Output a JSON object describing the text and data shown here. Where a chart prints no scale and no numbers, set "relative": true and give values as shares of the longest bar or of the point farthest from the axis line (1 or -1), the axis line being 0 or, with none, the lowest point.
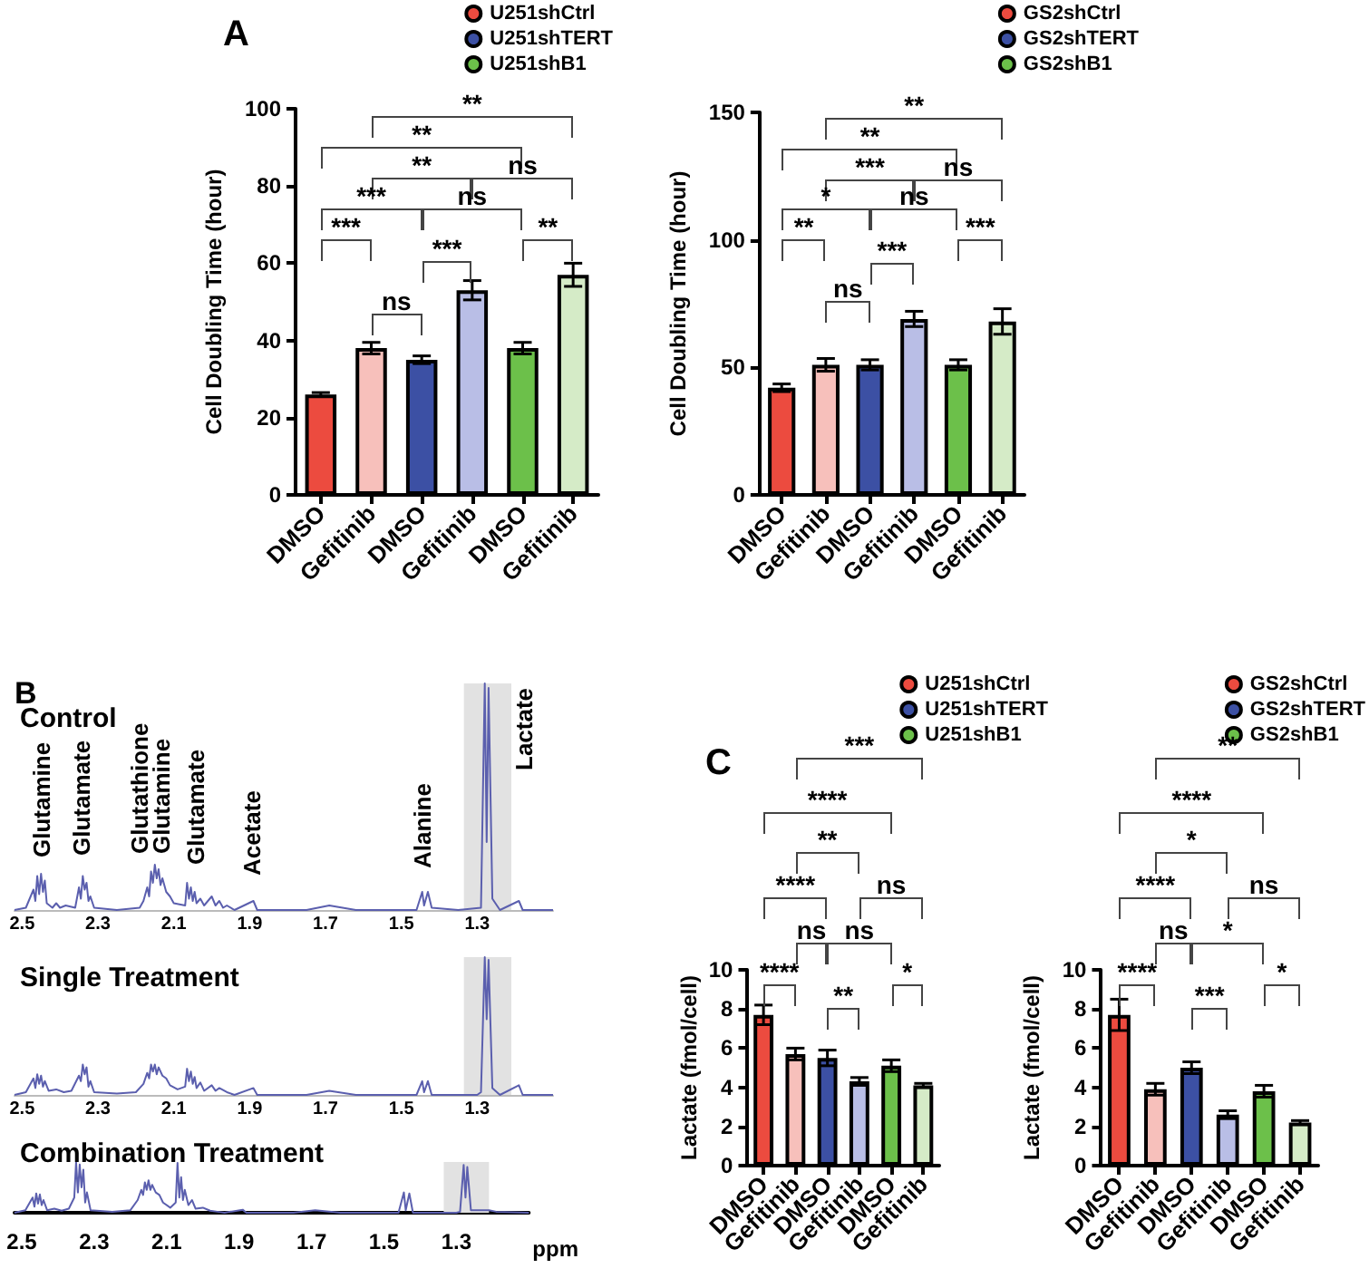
{
  "chart_data": [
    {
      "type": "bar",
      "title": "A",
      "ylabel": "Cell Doubling Time (hour)",
      "categories": [
        "DMSO",
        "Gefitinib",
        "DMSO",
        "Gefitinib",
        "DMSO",
        "Gefitinib"
      ],
      "ylim": [
        0,
        100
      ],
      "yticks": [
        0,
        20,
        40,
        60,
        80,
        100
      ],
      "legend": "top right",
      "annotations": [
        "**",
        "**",
        "**",
        "ns",
        "***",
        "ns",
        "***",
        "***",
        "**",
        "ns"
      ],
      "series": [
        {
          "name": "U251shCtrl",
          "color": "#ec4b3f",
          "colors": [
            "#ec4b3f",
            "#f7c0bb",
            null,
            null,
            null,
            null
          ],
          "values": [
            26,
            38,
            null,
            null,
            null,
            null
          ],
          "errors": [
            0.5,
            1.5,
            null,
            null,
            null,
            null
          ]
        },
        {
          "name": "U251shTERT",
          "color": "#3c50a4",
          "colors": [
            null,
            null,
            "#3c50a4",
            "#b9bee6",
            null,
            null
          ],
          "values": [
            null,
            null,
            35,
            53,
            null,
            null
          ],
          "errors": [
            null,
            null,
            1,
            2.5,
            null,
            null
          ]
        },
        {
          "name": "U251shB1",
          "color": "#6cc04a",
          "colors": [
            null,
            null,
            null,
            null,
            "#6cc04a",
            "#d5ebc7"
          ],
          "values": [
            null,
            null,
            null,
            null,
            38,
            57
          ],
          "errors": [
            null,
            null,
            null,
            null,
            1.5,
            3
          ]
        }
      ]
    },
    {
      "type": "bar",
      "ylabel": "Cell Doubling Time (hour)",
      "categories": [
        "DMSO",
        "Gefitinib",
        "DMSO",
        "Gefitinib",
        "DMSO",
        "Gefitinib"
      ],
      "ylim": [
        0,
        150
      ],
      "yticks": [
        0,
        50,
        100,
        150
      ],
      "legend": "top right",
      "annotations": [
        "**",
        "**",
        "***",
        "ns",
        "*",
        "ns",
        "**",
        "***",
        "***",
        "ns"
      ],
      "series": [
        {
          "name": "GS2shCtrl",
          "color": "#ec4b3f",
          "colors": [
            "#ec4b3f",
            "#f7c0bb",
            null,
            null,
            null,
            null
          ],
          "values": [
            42,
            51,
            null,
            null,
            null,
            null
          ],
          "errors": [
            1.5,
            2.5,
            null,
            null,
            null,
            null
          ]
        },
        {
          "name": "GS2shTERT",
          "color": "#3c50a4",
          "colors": [
            null,
            null,
            "#3c50a4",
            "#b9bee6",
            null,
            null
          ],
          "values": [
            null,
            null,
            51,
            69,
            null,
            null
          ],
          "errors": [
            null,
            null,
            2,
            3,
            null,
            null
          ]
        },
        {
          "name": "GS2shB1",
          "color": "#6cc04a",
          "colors": [
            null,
            null,
            null,
            null,
            "#6cc04a",
            "#d5ebc7"
          ],
          "values": [
            null,
            null,
            null,
            null,
            51,
            68
          ],
          "errors": [
            null,
            null,
            null,
            null,
            2,
            5
          ]
        }
      ]
    },
    {
      "type": "line",
      "title": "B",
      "subtitle": "Control",
      "relative": true,
      "xlim": [
        2.52,
        1.1
      ],
      "xticks": [
        2.5,
        2.3,
        2.1,
        1.9,
        1.7,
        1.5,
        1.3
      ],
      "tick_labels": "x",
      "bands": [
        {
          "axis": "x",
          "from": 1.335,
          "to": 1.21,
          "color": "#e2e2e2"
        }
      ],
      "annotations": [
        "Glutamine",
        "Glutamate",
        "Glutathione",
        "Glutamine",
        "Glutamate",
        "Acetate",
        "Alanine",
        "Lactate"
      ],
      "series": [
        {
          "color": "#5b5fae",
          "x": [
            2.52,
            2.49,
            2.47,
            2.465,
            2.46,
            2.455,
            2.45,
            2.445,
            2.44,
            2.435,
            2.42,
            2.41,
            2.4,
            2.385,
            2.36,
            2.35,
            2.345,
            2.34,
            2.335,
            2.33,
            2.325,
            2.32,
            2.31,
            2.25,
            2.19,
            2.18,
            2.17,
            2.165,
            2.16,
            2.155,
            2.15,
            2.145,
            2.14,
            2.135,
            2.13,
            2.12,
            2.11,
            2.1,
            2.07,
            2.065,
            2.06,
            2.055,
            2.05,
            2.045,
            2.04,
            2.03,
            2.02,
            2.0,
            1.99,
            1.98,
            1.97,
            1.96,
            1.94,
            1.89,
            1.88,
            1.75,
            1.69,
            1.62,
            1.46,
            1.445,
            1.44,
            1.43,
            1.42,
            1.35,
            1.29,
            1.28,
            1.275,
            1.27,
            1.26,
            1.24,
            1.19,
            1.18,
            1.1
          ],
          "values": [
            0,
            0.01,
            0.09,
            0.04,
            0.15,
            0.07,
            0.16,
            0.08,
            0.13,
            0.03,
            0.01,
            0.03,
            0.01,
            0.02,
            0.01,
            0.1,
            0.05,
            0.15,
            0.09,
            0.12,
            0.04,
            0.06,
            0.01,
            0,
            0.01,
            0.04,
            0.1,
            0.06,
            0.17,
            0.12,
            0.2,
            0.14,
            0.18,
            0.11,
            0.14,
            0.08,
            0.06,
            0.03,
            0.02,
            0.12,
            0.05,
            0.1,
            0.04,
            0.08,
            0.03,
            0.05,
            0.02,
            0.06,
            0.02,
            0.04,
            0.01,
            0.02,
            0,
            0.04,
            0,
            0,
            0.02,
            0,
            0,
            0.08,
            0.02,
            0.08,
            0.01,
            0,
            0.01,
            1,
            0.3,
            0.98,
            0.05,
            0,
            0.04,
            0,
            0
          ]
        }
      ]
    },
    {
      "type": "line",
      "title": "Single Treatment",
      "relative": true,
      "xlim": [
        2.52,
        1.1
      ],
      "xticks": [
        2.5,
        2.3,
        2.1,
        1.9,
        1.7,
        1.5,
        1.3
      ],
      "tick_labels": "x",
      "bands": [
        {
          "axis": "x",
          "from": 1.335,
          "to": 1.21,
          "color": "#e2e2e2"
        }
      ],
      "series": [
        {
          "color": "#5b5fae",
          "x": [
            2.52,
            2.49,
            2.47,
            2.465,
            2.46,
            2.455,
            2.45,
            2.445,
            2.44,
            2.43,
            2.41,
            2.39,
            2.37,
            2.35,
            2.345,
            2.34,
            2.335,
            2.33,
            2.325,
            2.32,
            2.31,
            2.25,
            2.2,
            2.18,
            2.17,
            2.165,
            2.16,
            2.155,
            2.15,
            2.145,
            2.14,
            2.13,
            2.12,
            2.11,
            2.09,
            2.07,
            2.065,
            2.06,
            2.055,
            2.05,
            2.045,
            2.04,
            2.03,
            2.02,
            2.0,
            1.99,
            1.98,
            1.96,
            1.94,
            1.89,
            1.88,
            1.75,
            1.69,
            1.62,
            1.46,
            1.445,
            1.44,
            1.43,
            1.42,
            1.3,
            1.29,
            1.28,
            1.275,
            1.27,
            1.26,
            1.24,
            1.19,
            1.18,
            1.1
          ],
          "values": [
            0,
            0.02,
            0.12,
            0.05,
            0.15,
            0.08,
            0.14,
            0.06,
            0.1,
            0.03,
            0.04,
            0.02,
            0.03,
            0.14,
            0.1,
            0.22,
            0.15,
            0.2,
            0.06,
            0.1,
            0.02,
            0.01,
            0.02,
            0.08,
            0.16,
            0.12,
            0.22,
            0.17,
            0.22,
            0.15,
            0.2,
            0.14,
            0.12,
            0.07,
            0.04,
            0.06,
            0.19,
            0.1,
            0.17,
            0.08,
            0.13,
            0.05,
            0.09,
            0.03,
            0.07,
            0.03,
            0.05,
            0.02,
            0,
            0.05,
            0,
            0,
            0.03,
            0,
            0,
            0.1,
            0.02,
            0.1,
            0,
            0,
            0.02,
            1,
            0.55,
            0.98,
            0.05,
            0,
            0.07,
            0,
            0
          ]
        }
      ]
    },
    {
      "type": "line",
      "title": "Combination Treatment",
      "xlabel": "ppm",
      "relative": true,
      "xlim": [
        2.52,
        1.1
      ],
      "xticks": [
        2.5,
        2.3,
        2.1,
        1.9,
        1.7,
        1.5,
        1.3
      ],
      "tick_labels": "x",
      "bands": [
        {
          "axis": "x",
          "from": 1.335,
          "to": 1.21,
          "color": "#e2e2e2"
        }
      ],
      "series": [
        {
          "color": "#5b5fae",
          "x": [
            2.52,
            2.49,
            2.47,
            2.465,
            2.46,
            2.455,
            2.45,
            2.445,
            2.44,
            2.43,
            2.41,
            2.39,
            2.37,
            2.355,
            2.35,
            2.345,
            2.34,
            2.335,
            2.33,
            2.325,
            2.32,
            2.31,
            2.25,
            2.2,
            2.18,
            2.17,
            2.165,
            2.16,
            2.155,
            2.15,
            2.145,
            2.14,
            2.13,
            2.12,
            2.11,
            2.09,
            2.075,
            2.07,
            2.065,
            2.06,
            2.055,
            2.05,
            2.04,
            2.03,
            2.02,
            2.0,
            1.98,
            1.96,
            1.94,
            1.89,
            1.88,
            1.75,
            1.69,
            1.62,
            1.46,
            1.445,
            1.44,
            1.43,
            1.42,
            1.3,
            1.29,
            1.28,
            1.275,
            1.27,
            1.26,
            1.24,
            1.21,
            1.19,
            1.1
          ],
          "values": [
            0,
            0.05,
            0.3,
            0.12,
            0.38,
            0.18,
            0.36,
            0.15,
            0.25,
            0.05,
            0.08,
            0.04,
            0.08,
            0.3,
            1,
            0.4,
            0.95,
            0.5,
            0.85,
            0.2,
            0.4,
            0.05,
            0.02,
            0.05,
            0.25,
            0.45,
            0.35,
            0.6,
            0.45,
            0.64,
            0.45,
            0.55,
            0.4,
            0.35,
            0.2,
            0.1,
            0.2,
            0.98,
            0.3,
            0.7,
            0.25,
            0.45,
            0.15,
            0.25,
            0.08,
            0.1,
            0.04,
            0.02,
            0,
            0.06,
            0,
            0,
            0.05,
            0,
            0,
            0.4,
            0.05,
            0.38,
            0,
            0,
            0.02,
            0.94,
            0.3,
            0.9,
            0.05,
            0.05,
            0.05,
            0.02,
            0
          ]
        }
      ]
    },
    {
      "type": "bar",
      "title": "C",
      "ylabel": "Lactate (fmol/cell)",
      "categories": [
        "DMSO",
        "Gefitinib",
        "DMSO",
        "Gefitinib",
        "DMSO",
        "Gefitinib"
      ],
      "ylim": [
        0,
        10
      ],
      "yticks": [
        0,
        2,
        4,
        6,
        8,
        10
      ],
      "legend": "top right",
      "annotations": [
        "***",
        "****",
        "**",
        "****",
        "ns",
        "ns",
        "ns",
        "****",
        "**",
        "*"
      ],
      "series": [
        {
          "name": "U251shCtrl",
          "color": "#ec4b3f",
          "colors": [
            "#ec4b3f",
            "#f7c0bb",
            null,
            null,
            null,
            null
          ],
          "values": [
            7.7,
            5.7,
            null,
            null,
            null,
            null
          ],
          "errors": [
            0.5,
            0.3,
            null,
            null,
            null,
            null
          ]
        },
        {
          "name": "U251shTERT",
          "color": "#3c50a4",
          "colors": [
            null,
            null,
            "#3c50a4",
            "#b9bee6",
            null,
            null
          ],
          "values": [
            null,
            null,
            5.5,
            4.3,
            null,
            null
          ],
          "errors": [
            null,
            null,
            0.4,
            0.2,
            null,
            null
          ]
        },
        {
          "name": "U251shB1",
          "color": "#6cc04a",
          "colors": [
            null,
            null,
            null,
            null,
            "#6cc04a",
            "#d5ebc7"
          ],
          "values": [
            null,
            null,
            null,
            null,
            5.1,
            4.1
          ],
          "errors": [
            null,
            null,
            null,
            null,
            0.3,
            0.1
          ]
        }
      ]
    },
    {
      "type": "bar",
      "ylabel": "Lactate (fmol/cell)",
      "categories": [
        "DMSO",
        "Gefitinib",
        "DMSO",
        "Gefitinib",
        "DMSO",
        "Gefitinib"
      ],
      "ylim": [
        0,
        10
      ],
      "yticks": [
        0,
        2,
        4,
        6,
        8,
        10
      ],
      "legend": "top right",
      "annotations": [
        "**",
        "****",
        "*",
        "****",
        "ns",
        "ns",
        "*",
        "****",
        "***",
        "*"
      ],
      "series": [
        {
          "name": "GS2shCtrl",
          "color": "#ec4b3f",
          "colors": [
            "#ec4b3f",
            "#f7c0bb",
            null,
            null,
            null,
            null
          ],
          "values": [
            7.7,
            3.9,
            null,
            null,
            null,
            null
          ],
          "errors": [
            0.8,
            0.3,
            null,
            null,
            null,
            null
          ]
        },
        {
          "name": "GS2shTERT",
          "color": "#3c50a4",
          "colors": [
            null,
            null,
            "#3c50a4",
            "#b9bee6",
            null,
            null
          ],
          "values": [
            null,
            null,
            5,
            2.6,
            null,
            null
          ],
          "errors": [
            null,
            null,
            0.3,
            0.2,
            null,
            null
          ]
        },
        {
          "name": "GS2shB1",
          "color": "#6cc04a",
          "colors": [
            null,
            null,
            null,
            null,
            "#6cc04a",
            "#d5ebc7"
          ],
          "values": [
            null,
            null,
            null,
            null,
            3.8,
            2.2
          ],
          "errors": [
            null,
            null,
            null,
            null,
            0.3,
            0.1
          ]
        }
      ]
    }
  ]
}
